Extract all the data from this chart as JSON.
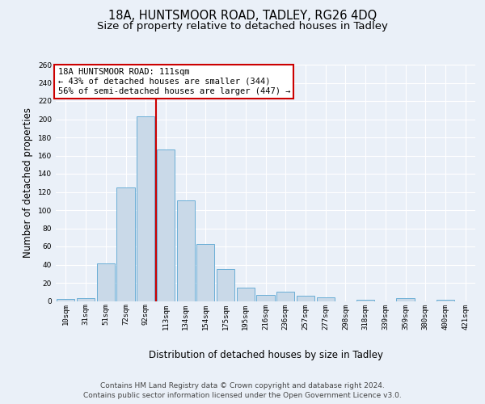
{
  "title_line1": "18A, HUNTSMOOR ROAD, TADLEY, RG26 4DQ",
  "title_line2": "Size of property relative to detached houses in Tadley",
  "xlabel": "Distribution of detached houses by size in Tadley",
  "ylabel": "Number of detached properties",
  "bar_labels": [
    "10sqm",
    "31sqm",
    "51sqm",
    "72sqm",
    "92sqm",
    "113sqm",
    "134sqm",
    "154sqm",
    "175sqm",
    "195sqm",
    "216sqm",
    "236sqm",
    "257sqm",
    "277sqm",
    "298sqm",
    "318sqm",
    "339sqm",
    "359sqm",
    "380sqm",
    "400sqm",
    "421sqm"
  ],
  "bar_values": [
    2,
    3,
    41,
    125,
    203,
    167,
    111,
    63,
    35,
    15,
    7,
    10,
    6,
    4,
    0,
    1,
    0,
    3,
    0,
    1,
    0
  ],
  "bar_color": "#c9d9e8",
  "bar_edge_color": "#6aaed6",
  "vline_x": 4.5,
  "vline_color": "#cc0000",
  "annotation_text": "18A HUNTSMOOR ROAD: 111sqm\n← 43% of detached houses are smaller (344)\n56% of semi-detached houses are larger (447) →",
  "annotation_box_color": "#cc0000",
  "ylim": [
    0,
    260
  ],
  "yticks": [
    0,
    20,
    40,
    60,
    80,
    100,
    120,
    140,
    160,
    180,
    200,
    220,
    240,
    260
  ],
  "bg_color": "#eaf0f8",
  "plot_bg_color": "#eaf0f8",
  "footer_line1": "Contains HM Land Registry data © Crown copyright and database right 2024.",
  "footer_line2": "Contains public sector information licensed under the Open Government Licence v3.0.",
  "title_fontsize": 10.5,
  "subtitle_fontsize": 9.5,
  "axis_label_fontsize": 8.5,
  "tick_fontsize": 6.5,
  "annotation_fontsize": 7.5,
  "footer_fontsize": 6.5
}
